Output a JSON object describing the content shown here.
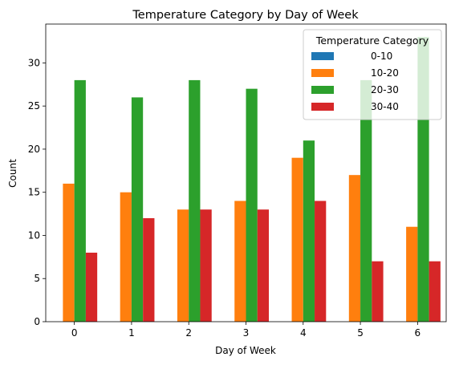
{
  "chart_data": {
    "type": "bar",
    "title": "Temperature Category by Day of Week",
    "xlabel": "Day of Week",
    "ylabel": "Count",
    "categories": [
      "0",
      "1",
      "2",
      "3",
      "4",
      "5",
      "6"
    ],
    "ylim": [
      0,
      34.5
    ],
    "yticks": [
      0,
      5,
      10,
      15,
      20,
      25,
      30
    ],
    "grid": false,
    "legend": {
      "title": "Temperature Category",
      "placement": "top-right"
    },
    "series": [
      {
        "name": "0-10",
        "color": "#1f77b4",
        "values": [
          0,
          0,
          0,
          0,
          0,
          0,
          0
        ]
      },
      {
        "name": "10-20",
        "color": "#ff7f0e",
        "values": [
          16,
          15,
          13,
          14,
          19,
          17,
          11
        ]
      },
      {
        "name": "20-30",
        "color": "#2ca02c",
        "values": [
          28,
          26,
          28,
          27,
          21,
          28,
          33
        ]
      },
      {
        "name": "30-40",
        "color": "#d62728",
        "values": [
          8,
          12,
          13,
          13,
          14,
          7,
          7
        ]
      }
    ]
  }
}
